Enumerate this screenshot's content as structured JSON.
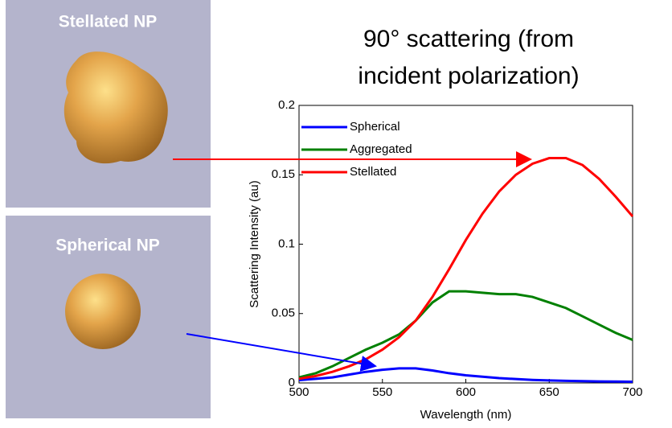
{
  "panels": [
    "Stellated NP",
    "Spherical NP"
  ],
  "chart_data": {
    "type": "line",
    "title": "90° scattering (from incident polarization)",
    "x_label": "Wavelength (nm)",
    "y_label": "Scattering Intensity (au)",
    "x": [
      500,
      510,
      520,
      530,
      540,
      550,
      560,
      570,
      580,
      590,
      600,
      610,
      620,
      630,
      640,
      650,
      660,
      670,
      680,
      690,
      700
    ],
    "series": [
      {
        "name": "Spherical",
        "color": "#0000ff",
        "values": [
          0.002,
          0.003,
          0.004,
          0.006,
          0.008,
          0.0095,
          0.0105,
          0.0105,
          0.009,
          0.007,
          0.0055,
          0.0045,
          0.0035,
          0.0028,
          0.0022,
          0.0018,
          0.0015,
          0.0013,
          0.0011,
          0.001,
          0.0009
        ]
      },
      {
        "name": "Aggregated",
        "color": "#008000",
        "values": [
          0.004,
          0.007,
          0.012,
          0.018,
          0.024,
          0.029,
          0.035,
          0.045,
          0.058,
          0.066,
          0.066,
          0.065,
          0.064,
          0.064,
          0.062,
          0.058,
          0.054,
          0.048,
          0.042,
          0.036,
          0.031
        ]
      },
      {
        "name": "Stellated",
        "color": "#ff0000",
        "values": [
          0.003,
          0.005,
          0.008,
          0.012,
          0.017,
          0.024,
          0.033,
          0.045,
          0.062,
          0.082,
          0.103,
          0.122,
          0.138,
          0.15,
          0.158,
          0.162,
          0.162,
          0.157,
          0.147,
          0.134,
          0.12
        ]
      }
    ],
    "xlim": [
      500,
      700
    ],
    "xticks": [
      500,
      550,
      600,
      650,
      700
    ],
    "ylim": [
      0,
      0.2
    ],
    "yticks": [
      0,
      0.05,
      0.1,
      0.15,
      0.2
    ],
    "legend": "upper left"
  }
}
